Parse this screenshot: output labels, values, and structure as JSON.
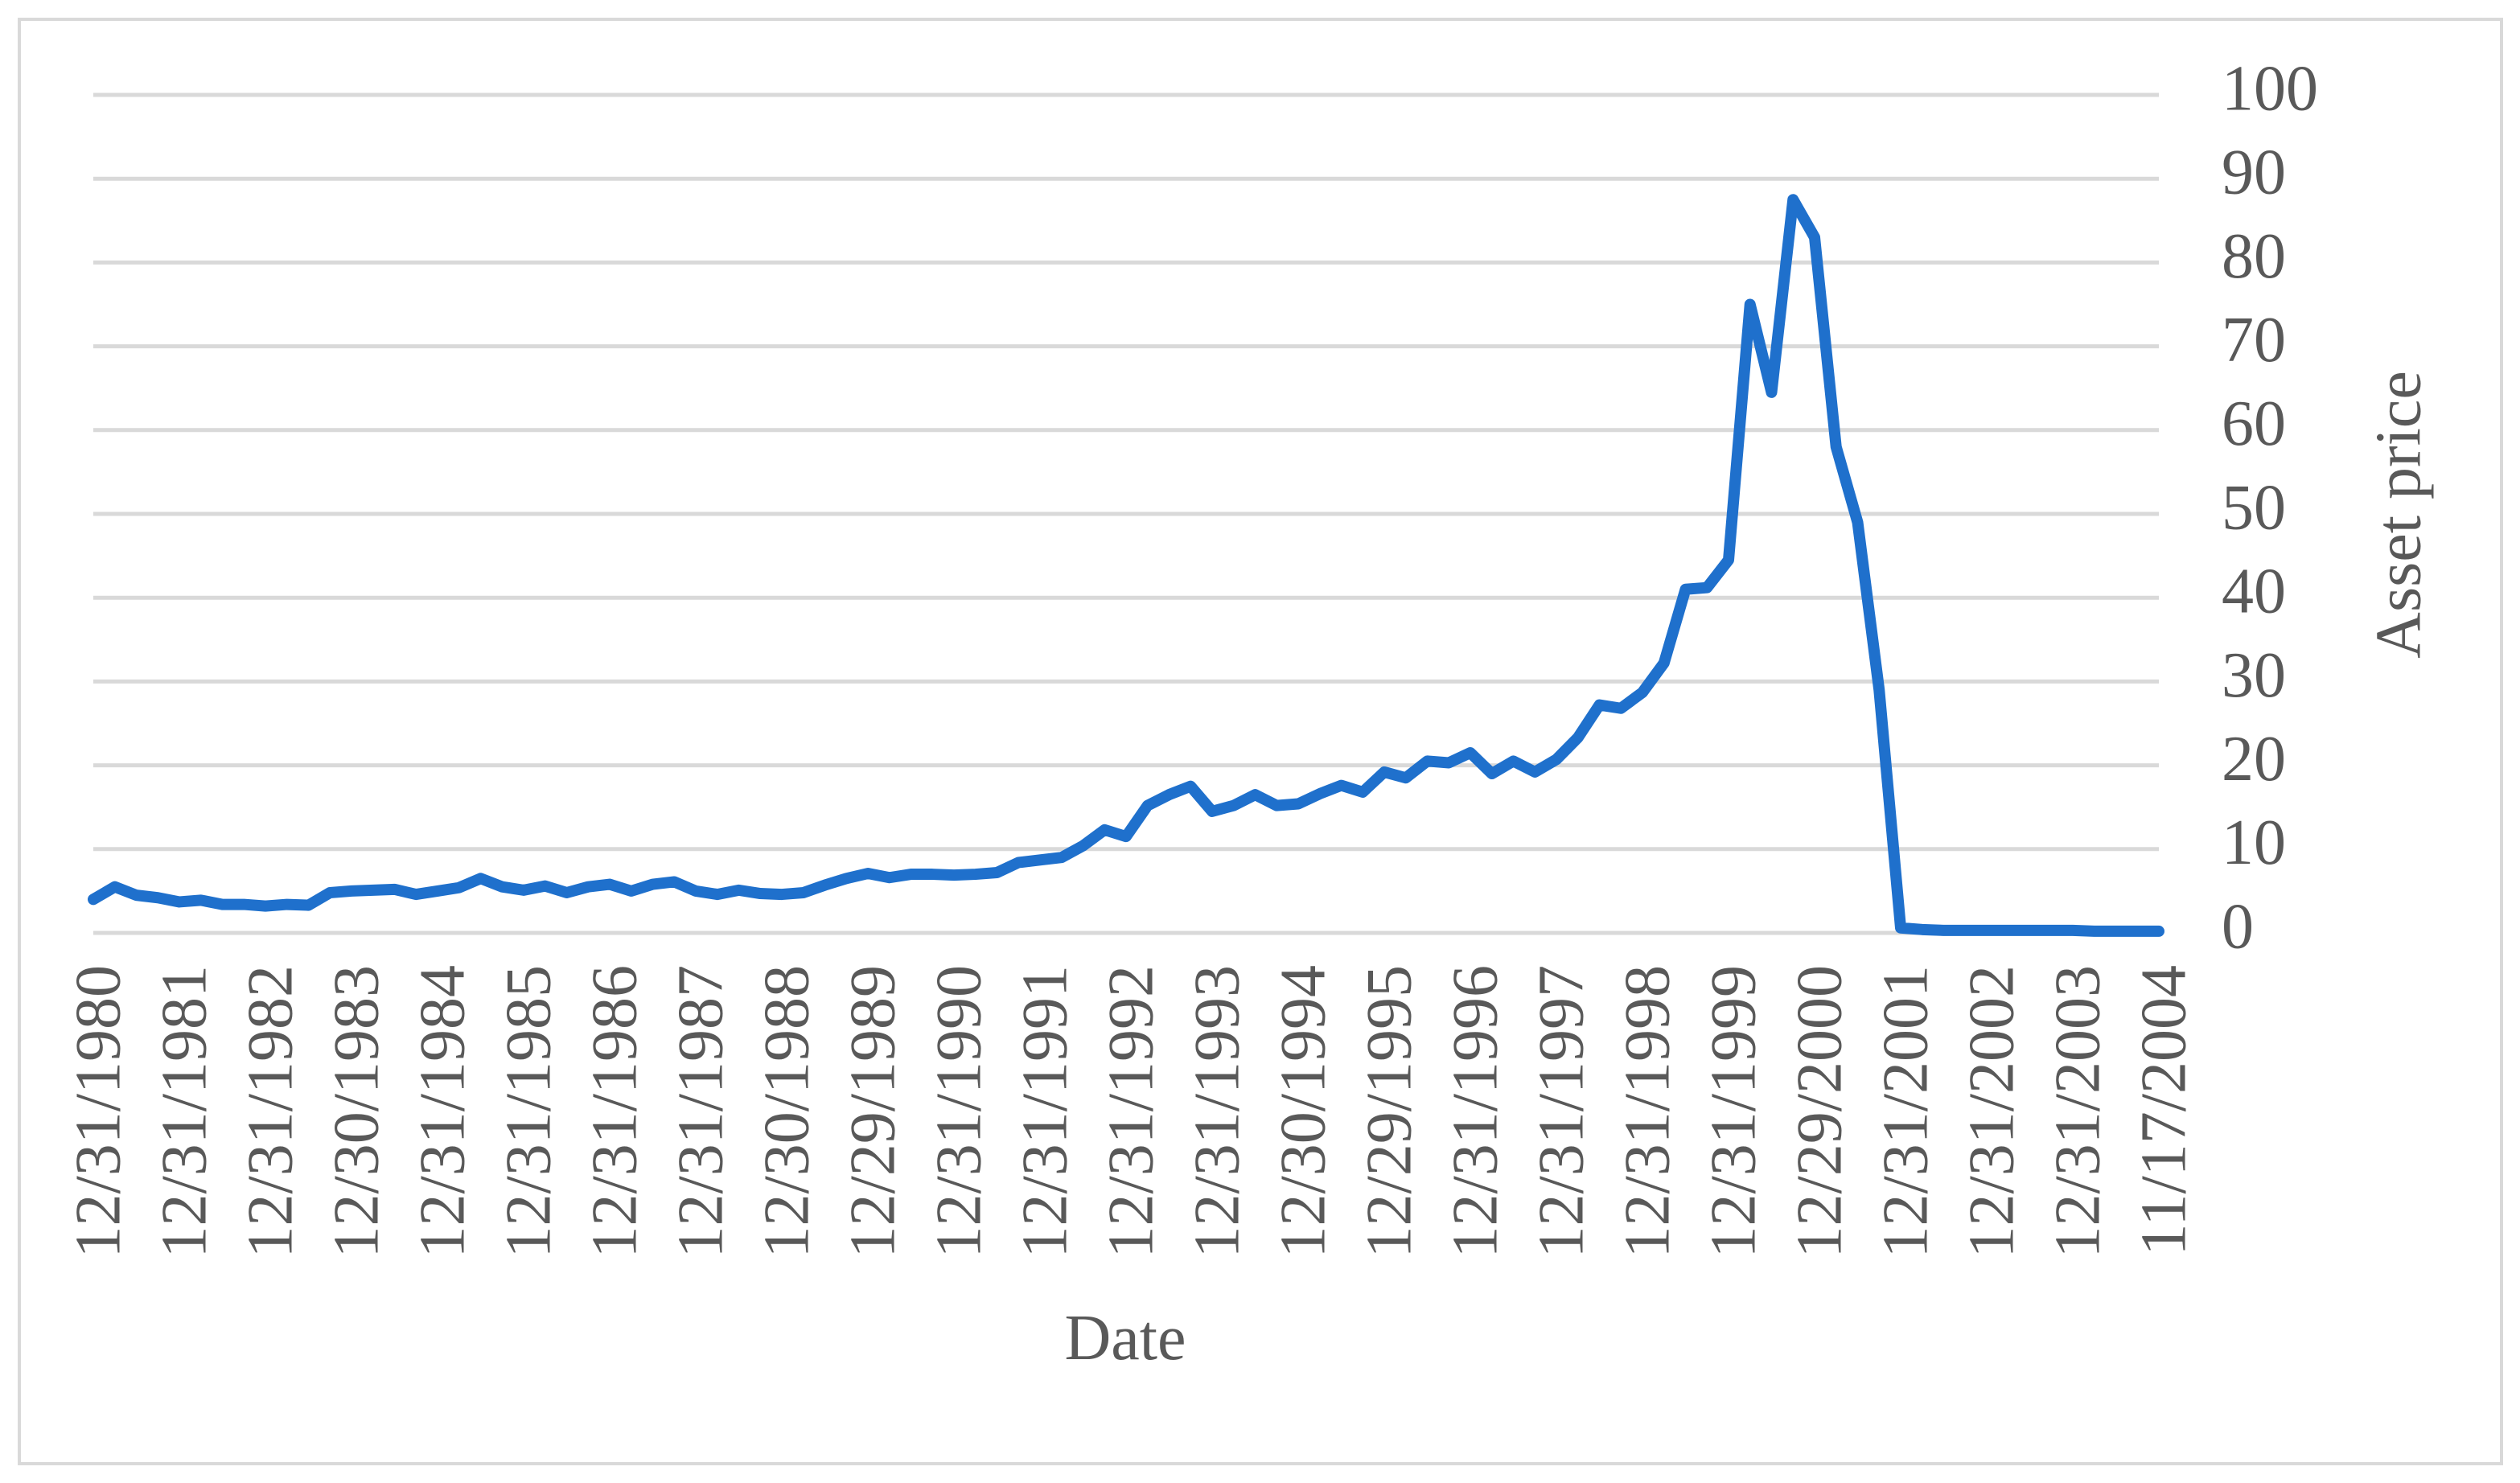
{
  "chart_data": {
    "type": "line",
    "xlabel": "Date",
    "ylabel": "Asset price",
    "y_axis_side": "right",
    "grid": true,
    "color": "#1f70cc",
    "categories": [
      "12/31/1980",
      null,
      null,
      null,
      "12/31/1981",
      null,
      null,
      null,
      "12/31/1982",
      null,
      null,
      null,
      "12/30/1983",
      null,
      null,
      null,
      "12/31/1984",
      null,
      null,
      null,
      "12/31/1985",
      null,
      null,
      null,
      "12/31/1986",
      null,
      null,
      null,
      "12/31/1987",
      null,
      null,
      null,
      "12/30/1988",
      null,
      null,
      null,
      "12/29/1989",
      null,
      null,
      null,
      "12/31/1990",
      null,
      null,
      null,
      "12/31/1991",
      null,
      null,
      null,
      "12/31/1992",
      null,
      null,
      null,
      "12/31/1993",
      null,
      null,
      null,
      "12/30/1994",
      null,
      null,
      null,
      "12/29/1995",
      null,
      null,
      null,
      "12/31/1996",
      null,
      null,
      null,
      "12/31/1997",
      null,
      null,
      null,
      "12/31/1998",
      null,
      null,
      null,
      "12/31/1999",
      null,
      null,
      null,
      "12/29/2000",
      null,
      null,
      null,
      "12/31/2001",
      null,
      null,
      null,
      "12/31/2002",
      null,
      null,
      null,
      "12/31/2003",
      null,
      null,
      null,
      "11/17/2004"
    ],
    "values": [
      4,
      5.5,
      4.5,
      4.2,
      3.7,
      3.9,
      3.4,
      3.4,
      3.2,
      3.4,
      3.3,
      4.8,
      5,
      5.1,
      5.2,
      4.6,
      5,
      5.4,
      6.5,
      5.5,
      5.1,
      5.6,
      4.8,
      5.5,
      5.8,
      5,
      5.8,
      6.1,
      5,
      4.6,
      5.1,
      4.7,
      4.6,
      4.8,
      5.7,
      6.5,
      7.1,
      6.6,
      7,
      7,
      6.9,
      7,
      7.2,
      8.4,
      8.7,
      9,
      10.4,
      12.3,
      11.5,
      15.2,
      16.5,
      17.5,
      14.5,
      15.2,
      16.5,
      15.2,
      15.4,
      16.6,
      17.6,
      16.8,
      19.2,
      18.5,
      20.5,
      20.3,
      21.5,
      19,
      20.5,
      19.2,
      20.7,
      23.3,
      27.2,
      26.8,
      28.7,
      32.2,
      41,
      41.2,
      44.5,
      75,
      64.5,
      87.5,
      83,
      58,
      49,
      29,
      0.6,
      0.4,
      0.3,
      0.3,
      0.3,
      0.3,
      0.3,
      0.3,
      0.3,
      0.2,
      0.2,
      0.2,
      0.2
    ],
    "ylim": [
      0,
      100
    ],
    "yticks": [
      0,
      10,
      20,
      30,
      40,
      50,
      60,
      70,
      80,
      90,
      100
    ]
  }
}
